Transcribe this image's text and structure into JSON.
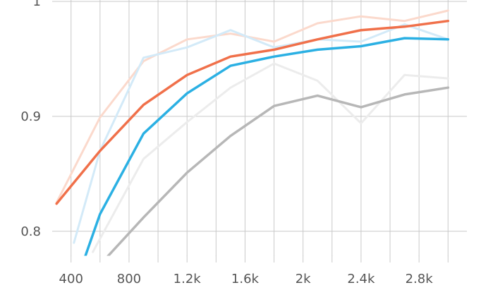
{
  "chart_data": {
    "type": "line",
    "title": "",
    "xlabel": "",
    "ylabel": "",
    "xlim": [
      270,
      3130
    ],
    "ylim": [
      0.779,
      1.0
    ],
    "x_ticks": [
      400,
      800,
      1200,
      1600,
      2000,
      2400,
      2800
    ],
    "x_tick_labels": [
      "400",
      "800",
      "1.2k",
      "1.6k",
      "2k",
      "2.4k",
      "2.8k"
    ],
    "y_ticks": [
      0.8,
      0.9,
      1.0
    ],
    "y_tick_labels": [
      "0.8",
      "0.9",
      "1"
    ],
    "grid": true,
    "series": [
      {
        "color": "#fbd9cc",
        "width": 3,
        "x": [
          300,
          600,
          900,
          1200,
          1500,
          1800,
          2100,
          2400,
          2700,
          3000
        ],
        "values": [
          0.825,
          0.899,
          0.948,
          0.967,
          0.972,
          0.965,
          0.981,
          0.987,
          0.983,
          0.992
        ]
      },
      {
        "color": "#d3eaf8",
        "width": 3,
        "x": [
          420,
          600,
          900,
          1200,
          1500,
          1800,
          2100,
          2400,
          2700,
          3000
        ],
        "values": [
          0.79,
          0.87,
          0.951,
          0.96,
          0.975,
          0.96,
          0.967,
          0.965,
          0.98,
          0.967
        ]
      },
      {
        "color": "#ececec",
        "width": 3,
        "x": [
          550,
          900,
          1200,
          1500,
          1800,
          2100,
          2400,
          2700,
          3000
        ],
        "values": [
          0.782,
          0.863,
          0.895,
          0.925,
          0.946,
          0.931,
          0.894,
          0.936,
          0.933
        ]
      },
      {
        "color": "#b7b7b7",
        "width": 3.5,
        "x": [
          520,
          900,
          1200,
          1500,
          1800,
          2100,
          2400,
          2700,
          3000
        ],
        "values": [
          0.76,
          0.812,
          0.851,
          0.883,
          0.909,
          0.918,
          0.908,
          0.919,
          0.925
        ]
      },
      {
        "color": "#2bb0e3",
        "width": 3.5,
        "x": [
          420,
          600,
          900,
          1200,
          1500,
          1800,
          2100,
          2400,
          2700,
          3000
        ],
        "values": [
          0.75,
          0.815,
          0.885,
          0.92,
          0.944,
          0.952,
          0.958,
          0.961,
          0.968,
          0.967
        ]
      },
      {
        "color": "#f0704a",
        "width": 3.5,
        "x": [
          300,
          600,
          900,
          1200,
          1500,
          1800,
          2100,
          2400,
          2700,
          3000
        ],
        "values": [
          0.824,
          0.87,
          0.91,
          0.936,
          0.952,
          0.958,
          0.967,
          0.975,
          0.978,
          0.983
        ]
      }
    ]
  }
}
